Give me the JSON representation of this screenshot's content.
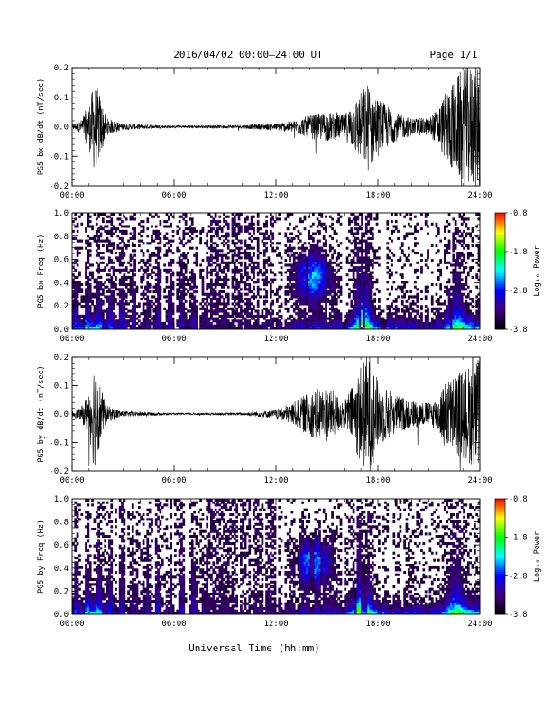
{
  "header": {
    "title": "2016/04/02  00:00–24:00 UT",
    "page": "Page 1/1"
  },
  "footer": {
    "xlabel": "Universal Time (hh:mm)"
  },
  "colorbar": {
    "label": "Log₁₀ Power",
    "ticks": [
      "-0.8",
      "-1.8",
      "-2.8",
      "-3.8"
    ],
    "tick_values": [
      -0.8,
      -1.8,
      -2.8,
      -3.8
    ],
    "range": [
      -3.8,
      -0.8
    ],
    "colormap": [
      "#000000",
      "#400080",
      "#0000ff",
      "#00ffff",
      "#00ff00",
      "#ffff00",
      "#ff0000"
    ]
  },
  "chart_data": [
    {
      "type": "line",
      "ylabel": "PG5 bx dB/dt (nT/sec)",
      "xlim": [
        0,
        24
      ],
      "ylim": [
        -0.2,
        0.2
      ],
      "xticks": [
        "00:00",
        "06:00",
        "12:00",
        "18:00",
        "24:00"
      ],
      "xtick_values": [
        0,
        6,
        12,
        18,
        24
      ],
      "yticks": [
        "0.2",
        "0.1",
        "0.0",
        "-0.1",
        "-0.2"
      ],
      "ytick_values": [
        0.2,
        0.1,
        0.0,
        -0.1,
        -0.2
      ],
      "envelope": {
        "x": [
          0,
          0.5,
          1.0,
          1.3,
          1.6,
          2.0,
          3.0,
          6.0,
          10.0,
          12.0,
          13.0,
          14.0,
          15.0,
          16.0,
          16.5,
          17.0,
          17.5,
          18.0,
          19.0,
          20.0,
          21.0,
          21.5,
          22.0,
          23.0,
          24.0
        ],
        "amplitude": [
          0.01,
          0.02,
          0.08,
          0.15,
          0.12,
          0.03,
          0.01,
          0.004,
          0.006,
          0.012,
          0.02,
          0.04,
          0.05,
          0.04,
          0.08,
          0.12,
          0.16,
          0.1,
          0.05,
          0.03,
          0.03,
          0.06,
          0.12,
          0.2,
          0.22
        ]
      }
    },
    {
      "type": "heatmap",
      "ylabel": "PG5 bx Freq (Hz)",
      "xlim": [
        0,
        24
      ],
      "ylim": [
        0.0,
        1.0
      ],
      "xticks": [
        "00:00",
        "06:00",
        "12:00",
        "18:00",
        "24:00"
      ],
      "xtick_values": [
        0,
        6,
        12,
        18,
        24
      ],
      "yticks": [
        "1.0",
        "0.8",
        "0.6",
        "0.4",
        "0.2",
        "0.0"
      ],
      "ytick_values": [
        1.0,
        0.8,
        0.6,
        0.4,
        0.2,
        0.0
      ],
      "z_range": [
        -3.8,
        -0.8
      ]
    },
    {
      "type": "line",
      "ylabel": "PG5 by dB/dt (nT/sec)",
      "xlim": [
        0,
        24
      ],
      "ylim": [
        -0.2,
        0.2
      ],
      "xticks": [
        "00:00",
        "06:00",
        "12:00",
        "18:00",
        "24:00"
      ],
      "xtick_values": [
        0,
        6,
        12,
        18,
        24
      ],
      "yticks": [
        "0.2",
        "0.1",
        "0.0",
        "-0.1",
        "-0.2"
      ],
      "ytick_values": [
        0.2,
        0.1,
        0.0,
        -0.1,
        -0.2
      ],
      "envelope": {
        "x": [
          0,
          0.5,
          1.0,
          1.3,
          1.6,
          2.0,
          3.0,
          6.0,
          10.0,
          12.0,
          13.0,
          14.0,
          15.0,
          16.0,
          16.5,
          17.0,
          17.5,
          18.0,
          19.0,
          20.0,
          21.0,
          21.5,
          22.0,
          23.0,
          24.0
        ],
        "amplitude": [
          0.01,
          0.02,
          0.08,
          0.2,
          0.12,
          0.03,
          0.01,
          0.003,
          0.005,
          0.015,
          0.04,
          0.08,
          0.1,
          0.05,
          0.1,
          0.18,
          0.22,
          0.12,
          0.07,
          0.05,
          0.04,
          0.06,
          0.12,
          0.16,
          0.2
        ]
      }
    },
    {
      "type": "heatmap",
      "ylabel": "PG5 by Freq (Hz)",
      "xlim": [
        0,
        24
      ],
      "ylim": [
        0.0,
        1.0
      ],
      "xticks": [
        "00:00",
        "06:00",
        "12:00",
        "18:00",
        "24:00"
      ],
      "xtick_values": [
        0,
        6,
        12,
        18,
        24
      ],
      "yticks": [
        "1.0",
        "0.8",
        "0.6",
        "0.4",
        "0.2",
        "0.0"
      ],
      "ytick_values": [
        1.0,
        0.8,
        0.6,
        0.4,
        0.2,
        0.0
      ],
      "z_range": [
        -3.8,
        -0.8
      ]
    }
  ]
}
